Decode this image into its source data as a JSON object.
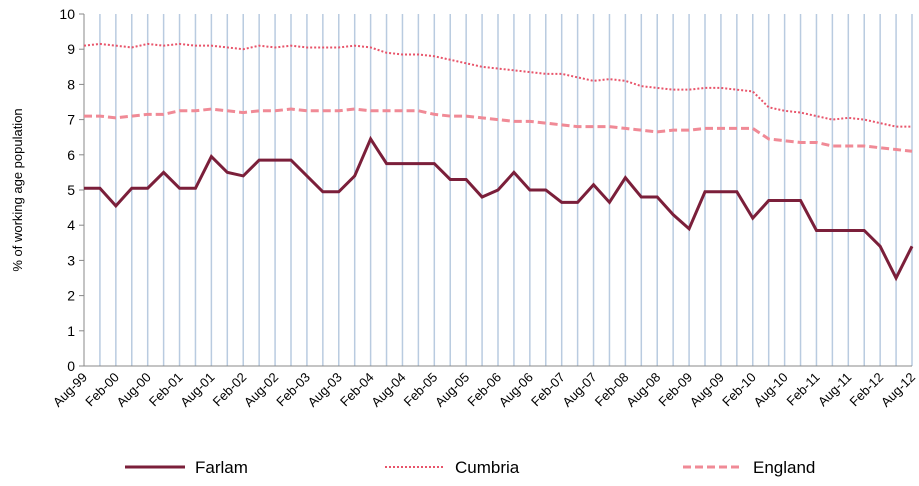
{
  "chart_data": {
    "type": "line",
    "y_label": "% of working age population",
    "categories": [
      "Aug-99",
      null,
      "Feb-00",
      null,
      "Aug-00",
      null,
      "Feb-01",
      null,
      "Aug-01",
      null,
      "Feb-02",
      null,
      "Aug-02",
      null,
      "Feb-03",
      null,
      "Aug-03",
      null,
      "Feb-04",
      null,
      "Aug-04",
      null,
      "Feb-05",
      null,
      "Aug-05",
      null,
      "Feb-06",
      null,
      "Aug-06",
      null,
      "Feb-07",
      null,
      "Aug-07",
      null,
      "Feb-08",
      null,
      "Aug-08",
      null,
      "Feb-09",
      null,
      "Aug-09",
      null,
      "Feb-10",
      null,
      "Aug-10",
      null,
      "Feb-11",
      null,
      "Aug-11",
      null,
      "Feb-12",
      null,
      "Aug-12"
    ],
    "series": [
      {
        "name": "Farlam",
        "color": "#7b1f3a",
        "style": "solid",
        "values": [
          5.05,
          5.05,
          4.55,
          5.05,
          5.05,
          5.5,
          5.05,
          5.05,
          5.95,
          5.5,
          5.4,
          5.85,
          5.85,
          5.85,
          5.4,
          4.95,
          4.95,
          5.4,
          6.45,
          5.75,
          5.75,
          5.75,
          5.75,
          5.3,
          5.3,
          4.8,
          5.0,
          5.5,
          5.0,
          5.0,
          4.65,
          4.65,
          5.15,
          4.65,
          5.35,
          4.8,
          4.8,
          4.3,
          3.9,
          4.95,
          4.95,
          4.95,
          4.2,
          4.7,
          4.7,
          4.7,
          3.85,
          3.85,
          3.85,
          3.85,
          3.4,
          2.5,
          3.4
        ]
      },
      {
        "name": "Cumbria",
        "color": "#e8546a",
        "style": "dotted",
        "values": [
          9.1,
          9.15,
          9.1,
          9.05,
          9.15,
          9.1,
          9.15,
          9.1,
          9.1,
          9.05,
          9.0,
          9.1,
          9.05,
          9.1,
          9.05,
          9.05,
          9.05,
          9.1,
          9.05,
          8.9,
          8.85,
          8.85,
          8.8,
          8.7,
          8.6,
          8.5,
          8.45,
          8.4,
          8.35,
          8.3,
          8.3,
          8.2,
          8.1,
          8.15,
          8.1,
          7.95,
          7.9,
          7.85,
          7.85,
          7.9,
          7.9,
          7.85,
          7.8,
          7.35,
          7.25,
          7.2,
          7.1,
          7.0,
          7.05,
          7.0,
          6.9,
          6.8,
          6.8
        ]
      },
      {
        "name": "England",
        "color": "#f08a96",
        "style": "dashed",
        "values": [
          7.1,
          7.1,
          7.05,
          7.1,
          7.15,
          7.15,
          7.25,
          7.25,
          7.3,
          7.25,
          7.2,
          7.25,
          7.25,
          7.3,
          7.25,
          7.25,
          7.25,
          7.3,
          7.25,
          7.25,
          7.25,
          7.25,
          7.15,
          7.1,
          7.1,
          7.05,
          7.0,
          6.95,
          6.95,
          6.9,
          6.85,
          6.8,
          6.8,
          6.8,
          6.75,
          6.7,
          6.65,
          6.7,
          6.7,
          6.75,
          6.75,
          6.75,
          6.75,
          6.45,
          6.4,
          6.35,
          6.35,
          6.25,
          6.25,
          6.25,
          6.2,
          6.15,
          6.1
        ]
      }
    ],
    "ylim": [
      0,
      10
    ],
    "yticks": [
      0,
      1,
      2,
      3,
      4,
      5,
      6,
      7,
      8,
      9,
      10
    ],
    "category_grid_color": "#b9cbe0",
    "legend_position": "bottom"
  }
}
